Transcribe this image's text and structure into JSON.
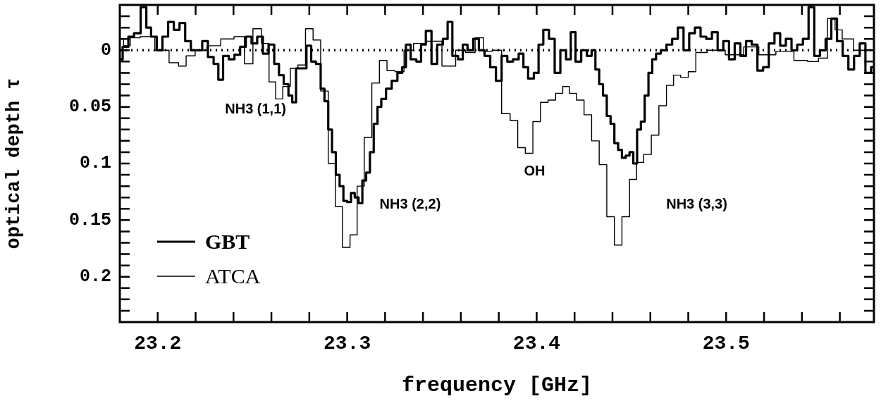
{
  "chart_data": {
    "type": "step",
    "xlabel": "frequency [GHz]",
    "ylabel": "optical depth τ",
    "xlim": [
      23.18,
      23.578
    ],
    "ylim": [
      0.24,
      -0.04
    ],
    "xticks": [
      23.2,
      23.3,
      23.4,
      23.5
    ],
    "yticks": [
      0,
      0.05,
      0.1,
      0.15,
      0.2
    ],
    "grid": false,
    "legend": "bottom left",
    "ref_lines": [
      {
        "axis": "y",
        "value": 0,
        "line_style": "dotted",
        "color": "#000000"
      }
    ],
    "annotations": [
      "NH3 (1,1)",
      "NH3 (2,2)",
      "OH",
      "NH3 (3,3)"
    ],
    "series": [
      {
        "name": "GBT",
        "color": "#000000",
        "x": [
          23.18,
          23.183,
          23.186,
          23.189,
          23.193,
          23.195,
          23.198,
          23.201,
          23.204,
          23.207,
          23.21,
          23.213,
          23.216,
          23.219,
          23.222,
          23.225,
          23.228,
          23.231,
          23.233,
          23.236,
          23.239,
          23.242,
          23.245,
          23.248,
          23.251,
          23.254,
          23.257,
          23.26,
          23.263,
          23.265,
          23.268,
          23.27,
          23.272,
          23.274,
          23.277,
          23.28,
          23.282,
          23.285,
          23.287,
          23.289,
          23.291,
          23.293,
          23.295,
          23.297,
          23.299,
          23.301,
          23.303,
          23.305,
          23.307,
          23.309,
          23.311,
          23.313,
          23.315,
          23.317,
          23.319,
          23.322,
          23.325,
          23.328,
          23.33,
          23.332,
          23.335,
          23.338,
          23.34,
          23.343,
          23.346,
          23.349,
          23.352,
          23.354,
          23.357,
          23.36,
          23.362,
          23.365,
          23.368,
          23.371,
          23.374,
          23.377,
          23.38,
          23.383,
          23.386,
          23.389,
          23.392,
          23.394,
          23.397,
          23.4,
          23.402,
          23.405,
          23.408,
          23.411,
          23.414,
          23.417,
          23.419,
          23.422,
          23.425,
          23.428,
          23.43,
          23.432,
          23.434,
          23.436,
          23.438,
          23.44,
          23.442,
          23.444,
          23.446,
          23.448,
          23.45,
          23.452,
          23.454,
          23.456,
          23.458,
          23.46,
          23.462,
          23.464,
          23.467,
          23.47,
          23.473,
          23.476,
          23.479,
          23.482,
          23.485,
          23.488,
          23.491,
          23.494,
          23.497,
          23.5,
          23.503,
          23.506,
          23.509,
          23.512,
          23.515,
          23.518,
          23.521,
          23.524,
          23.527,
          23.53,
          23.533,
          23.536,
          23.539,
          23.542,
          23.545,
          23.548,
          23.551,
          23.554,
          23.557,
          23.56,
          23.563,
          23.566,
          23.569,
          23.572,
          23.575,
          23.578
        ],
        "values": [
          0.008,
          -0.003,
          -0.012,
          -0.015,
          -0.038,
          -0.02,
          -0.012,
          0.0,
          -0.012,
          -0.025,
          -0.018,
          -0.024,
          -0.008,
          0.0,
          0.0,
          -0.008,
          0.006,
          0.012,
          0.026,
          0.005,
          0.008,
          0.004,
          -0.003,
          -0.012,
          -0.006,
          -0.012,
          0.003,
          -0.005,
          0.012,
          0.022,
          0.03,
          0.04,
          0.046,
          0.016,
          0.016,
          -0.004,
          0.01,
          0.012,
          0.034,
          0.045,
          0.07,
          0.09,
          0.11,
          0.12,
          0.133,
          0.134,
          0.126,
          0.13,
          0.135,
          0.115,
          0.108,
          0.09,
          0.065,
          0.05,
          0.043,
          0.034,
          0.027,
          0.02,
          0.015,
          -0.005,
          0.008,
          0.01,
          -0.005,
          -0.017,
          0.012,
          -0.005,
          -0.01,
          -0.025,
          0.005,
          0.008,
          -0.005,
          0.0,
          -0.01,
          0.0,
          0.005,
          0.015,
          0.027,
          0.005,
          0.01,
          0.008,
          0.003,
          0.015,
          0.025,
          0.02,
          -0.005,
          -0.018,
          -0.01,
          0.02,
          0.0,
          0.008,
          -0.016,
          0.01,
          0.0,
          0.005,
          0.0,
          0.017,
          0.03,
          0.04,
          0.058,
          0.065,
          0.082,
          0.088,
          0.095,
          0.093,
          0.09,
          0.1,
          0.07,
          0.063,
          0.04,
          0.02,
          0.008,
          0.003,
          0.0,
          -0.005,
          -0.01,
          -0.02,
          0.0,
          -0.015,
          -0.02,
          -0.012,
          -0.01,
          -0.016,
          0.0,
          -0.008,
          0.008,
          -0.006,
          0.005,
          -0.008,
          -0.005,
          0.018,
          0.015,
          -0.006,
          -0.015,
          -0.004,
          -0.01,
          0.0,
          -0.005,
          -0.01,
          -0.038,
          0.005,
          0.0,
          -0.01,
          -0.028,
          -0.008,
          0.005,
          0.017,
          0.005,
          -0.006,
          0.02,
          0.015
        ]
      },
      {
        "name": "ATCA",
        "color": "#000000",
        "x": [
          23.1805,
          23.1835,
          23.1875,
          23.194,
          23.203,
          23.209,
          23.213,
          23.217,
          23.2225,
          23.2295,
          23.237,
          23.2435,
          23.248,
          23.2525,
          23.257,
          23.2605,
          23.264,
          23.268,
          23.272,
          23.276,
          23.28,
          23.284,
          23.288,
          23.292,
          23.2955,
          23.2995,
          23.3035,
          23.307,
          23.311,
          23.315,
          23.319,
          23.323,
          23.3275,
          23.3325,
          23.3375,
          23.3455,
          23.3545,
          23.36,
          23.365,
          23.37,
          23.374,
          23.379,
          23.384,
          23.388,
          23.392,
          23.396,
          23.4,
          23.404,
          23.408,
          23.412,
          23.4155,
          23.419,
          23.423,
          23.427,
          23.431,
          23.435,
          23.439,
          23.443,
          23.447,
          23.451,
          23.4545,
          23.4585,
          23.4625,
          23.4665,
          23.4705,
          23.474,
          23.478,
          23.482,
          23.486,
          23.494,
          23.505,
          23.5135,
          23.521,
          23.5315,
          23.54,
          23.546,
          23.5515,
          23.5555,
          23.5595,
          23.563,
          23.5715,
          23.578
        ],
        "values": [
          -0.01,
          -0.004,
          -0.011,
          -0.012,
          0.0,
          0.011,
          0.014,
          0.005,
          0.0,
          -0.004,
          -0.01,
          -0.012,
          0.012,
          -0.019,
          -0.006,
          0.028,
          0.043,
          0.032,
          0.016,
          0.013,
          -0.019,
          -0.009,
          0.036,
          0.1,
          0.138,
          0.174,
          0.163,
          0.12,
          0.077,
          0.029,
          0.009,
          0.018,
          0.019,
          0.0,
          -0.006,
          -0.008,
          0.014,
          0.0,
          0.002,
          -0.011,
          0.001,
          0.0,
          0.056,
          0.062,
          0.086,
          0.091,
          0.063,
          0.046,
          0.044,
          0.038,
          0.032,
          0.038,
          0.044,
          0.057,
          0.08,
          0.101,
          0.147,
          0.172,
          0.147,
          0.114,
          0.099,
          0.092,
          0.075,
          0.049,
          0.031,
          0.022,
          0.024,
          0.019,
          0.002,
          0.0,
          0.004,
          -0.003,
          0.004,
          0.001,
          0.009,
          0.01,
          0.007,
          -0.028,
          -0.018,
          -0.01,
          0.0,
          0.0
        ]
      }
    ]
  }
}
